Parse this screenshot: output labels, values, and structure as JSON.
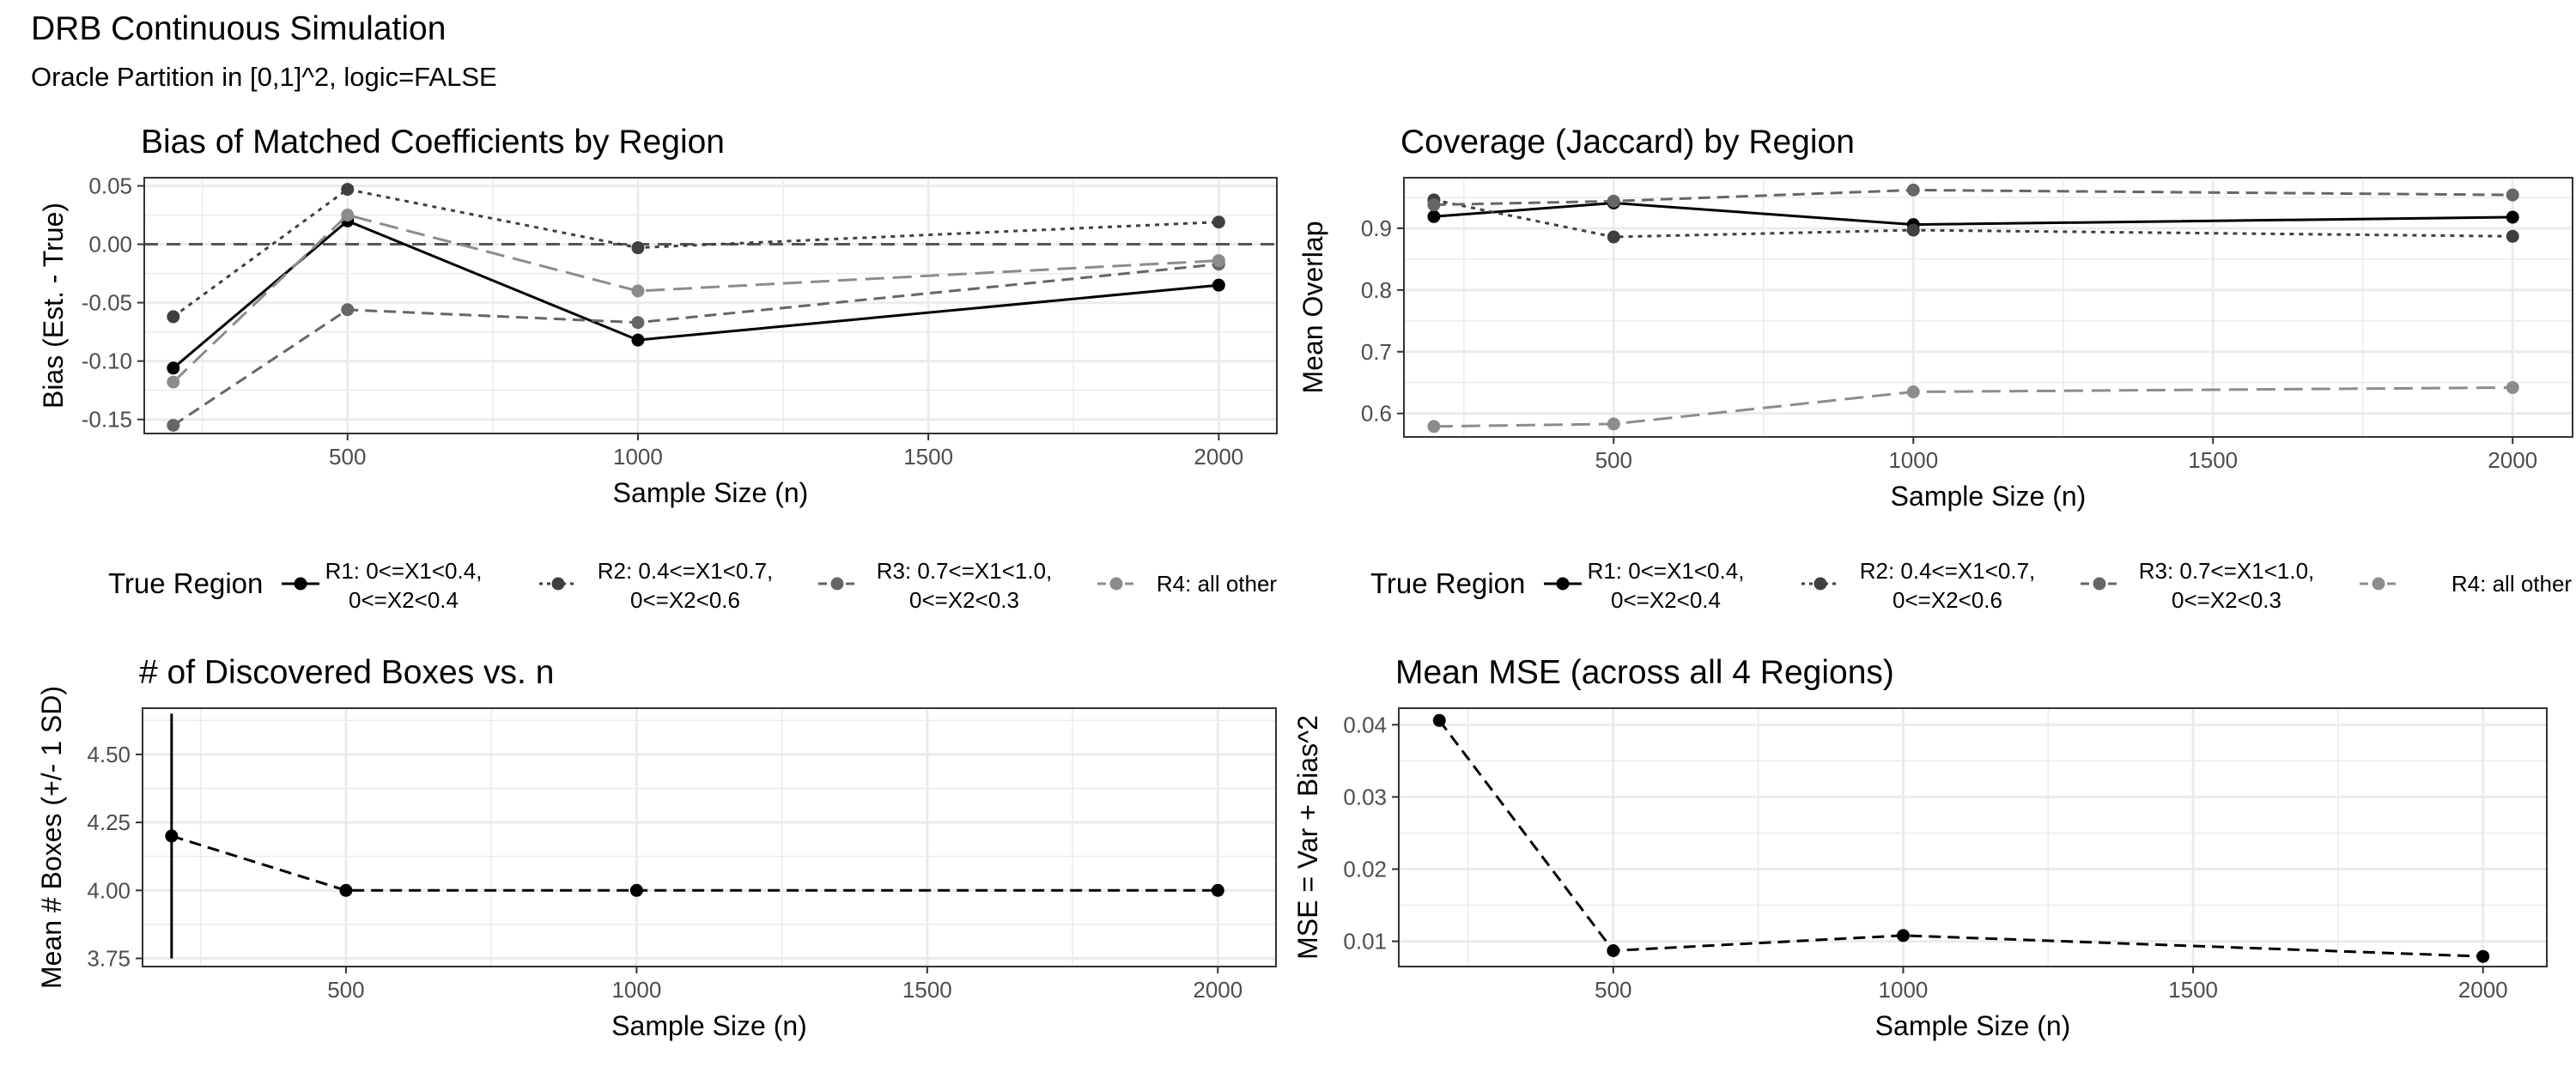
{
  "title": "DRB Continuous Simulation",
  "subtitle": "Oracle Partition in [0,1]^2, logic=FALSE",
  "colors": {
    "r1": "#000000",
    "r2": "#3f3f3f",
    "r3": "#666666",
    "r4": "#8c8c8c",
    "grid": "#ebebeb",
    "panel_border": "#333333"
  },
  "legend": {
    "title": "True Region",
    "entries": [
      {
        "key": "r1",
        "line1": "R1: 0<=X1<0.4,",
        "line2": "0<=X2<0.4",
        "linetype": "solid"
      },
      {
        "key": "r2",
        "line1": "R2: 0.4<=X1<0.7,",
        "line2": "0<=X2<0.6",
        "linetype": "dotted"
      },
      {
        "key": "r3",
        "line1": "R3: 0.7<=X1<1.0,",
        "line2": "0<=X2<0.3",
        "linetype": "dashed"
      },
      {
        "key": "r4",
        "line1": "R4: all other",
        "line2": "",
        "linetype": "longdash"
      }
    ]
  },
  "chart_data": [
    {
      "type": "line",
      "title": "Bias of Matched Coefficients by Region",
      "xlabel": "Sample Size (n)",
      "ylabel": "Bias (Est. - True)",
      "xlim": [
        150,
        2100
      ],
      "ylim": [
        -0.162,
        0.057
      ],
      "xticks": [
        500,
        1000,
        1500,
        2000
      ],
      "xtick_labels": [
        "500",
        "1000",
        "1500",
        "2000"
      ],
      "yticks": [
        -0.15,
        -0.1,
        -0.05,
        0.0,
        0.05
      ],
      "ytick_labels": [
        "-0.15",
        "-0.10",
        "-0.05",
        "0.00",
        "0.05"
      ],
      "hline": 0,
      "grid": true,
      "legend_position": "bottom",
      "x": [
        200,
        500,
        1000,
        2000
      ],
      "series": [
        {
          "name": "R1: 0<=X1<0.4, 0<=X2<0.4",
          "color": "#000000",
          "linetype": "solid",
          "values": [
            -0.106,
            0.02,
            -0.082,
            -0.035
          ]
        },
        {
          "name": "R2: 0.4<=X1<0.7, 0<=X2<0.6",
          "color": "#3f3f3f",
          "linetype": "dotted",
          "values": [
            -0.062,
            0.047,
            -0.003,
            0.019
          ]
        },
        {
          "name": "R3: 0.7<=X1<1.0, 0<=X2<0.3",
          "color": "#666666",
          "linetype": "dashed",
          "values": [
            -0.155,
            -0.056,
            -0.067,
            -0.017
          ]
        },
        {
          "name": "R4: all other",
          "color": "#8c8c8c",
          "linetype": "longdash",
          "values": [
            -0.118,
            0.025,
            -0.04,
            -0.014
          ]
        }
      ]
    },
    {
      "type": "line",
      "title": "Coverage (Jaccard) by Region",
      "xlabel": "Sample Size (n)",
      "ylabel": "Mean Overlap",
      "xlim": [
        150,
        2100
      ],
      "ylim": [
        0.562,
        0.982
      ],
      "xticks": [
        500,
        1000,
        1500,
        2000
      ],
      "xtick_labels": [
        "500",
        "1000",
        "1500",
        "2000"
      ],
      "yticks": [
        0.6,
        0.7,
        0.8,
        0.9
      ],
      "ytick_labels": [
        "0.6",
        "0.7",
        "0.8",
        "0.9"
      ],
      "grid": true,
      "legend_position": "bottom",
      "x": [
        200,
        500,
        1000,
        2000
      ],
      "series": [
        {
          "name": "R1: 0<=X1<0.4, 0<=X2<0.4",
          "color": "#000000",
          "linetype": "solid",
          "values": [
            0.919,
            0.941,
            0.906,
            0.918
          ]
        },
        {
          "name": "R2: 0.4<=X1<0.7, 0<=X2<0.6",
          "color": "#3f3f3f",
          "linetype": "dotted",
          "values": [
            0.946,
            0.886,
            0.897,
            0.887
          ]
        },
        {
          "name": "R3: 0.7<=X1<1.0, 0<=X2<0.3",
          "color": "#666666",
          "linetype": "dashed",
          "values": [
            0.938,
            0.944,
            0.962,
            0.954
          ]
        },
        {
          "name": "R4: all other",
          "color": "#8c8c8c",
          "linetype": "longdash",
          "values": [
            0.579,
            0.583,
            0.635,
            0.642
          ]
        }
      ]
    },
    {
      "type": "line",
      "title": "# of Discovered Boxes vs. n",
      "xlabel": "Sample Size (n)",
      "ylabel": "Mean # Boxes (+/- 1 SD)",
      "xlim": [
        150,
        2100
      ],
      "ylim": [
        3.72,
        4.67
      ],
      "xticks": [
        500,
        1000,
        1500,
        2000
      ],
      "xtick_labels": [
        "500",
        "1000",
        "1500",
        "2000"
      ],
      "yticks": [
        3.75,
        4.0,
        4.25,
        4.5
      ],
      "ytick_labels": [
        "3.75",
        "4.00",
        "4.25",
        "4.50"
      ],
      "grid": true,
      "x": [
        200,
        500,
        1000,
        2000
      ],
      "series": [
        {
          "color": "#000000",
          "linetype": "dashed",
          "values": [
            4.2,
            4.0,
            4.0,
            4.0
          ]
        }
      ],
      "errorbars": [
        {
          "x": 200,
          "low": 3.75,
          "high": 4.65
        }
      ]
    },
    {
      "type": "line",
      "title": "Mean MSE (across all 4 Regions)",
      "xlabel": "Sample Size (n)",
      "ylabel": "MSE = Var + Bias^2",
      "xlim": [
        130,
        2110
      ],
      "ylim": [
        0.0065,
        0.0423
      ],
      "xticks": [
        500,
        1000,
        1500,
        2000
      ],
      "xtick_labels": [
        "500",
        "1000",
        "1500",
        "2000"
      ],
      "yticks": [
        0.01,
        0.02,
        0.03,
        0.04
      ],
      "ytick_labels": [
        "0.01",
        "0.02",
        "0.03",
        "0.04"
      ],
      "grid": true,
      "x": [
        200,
        500,
        1000,
        2000
      ],
      "series": [
        {
          "color": "#000000",
          "linetype": "dashed",
          "values": [
            0.0406,
            0.0087,
            0.0108,
            0.0079
          ]
        }
      ]
    }
  ]
}
